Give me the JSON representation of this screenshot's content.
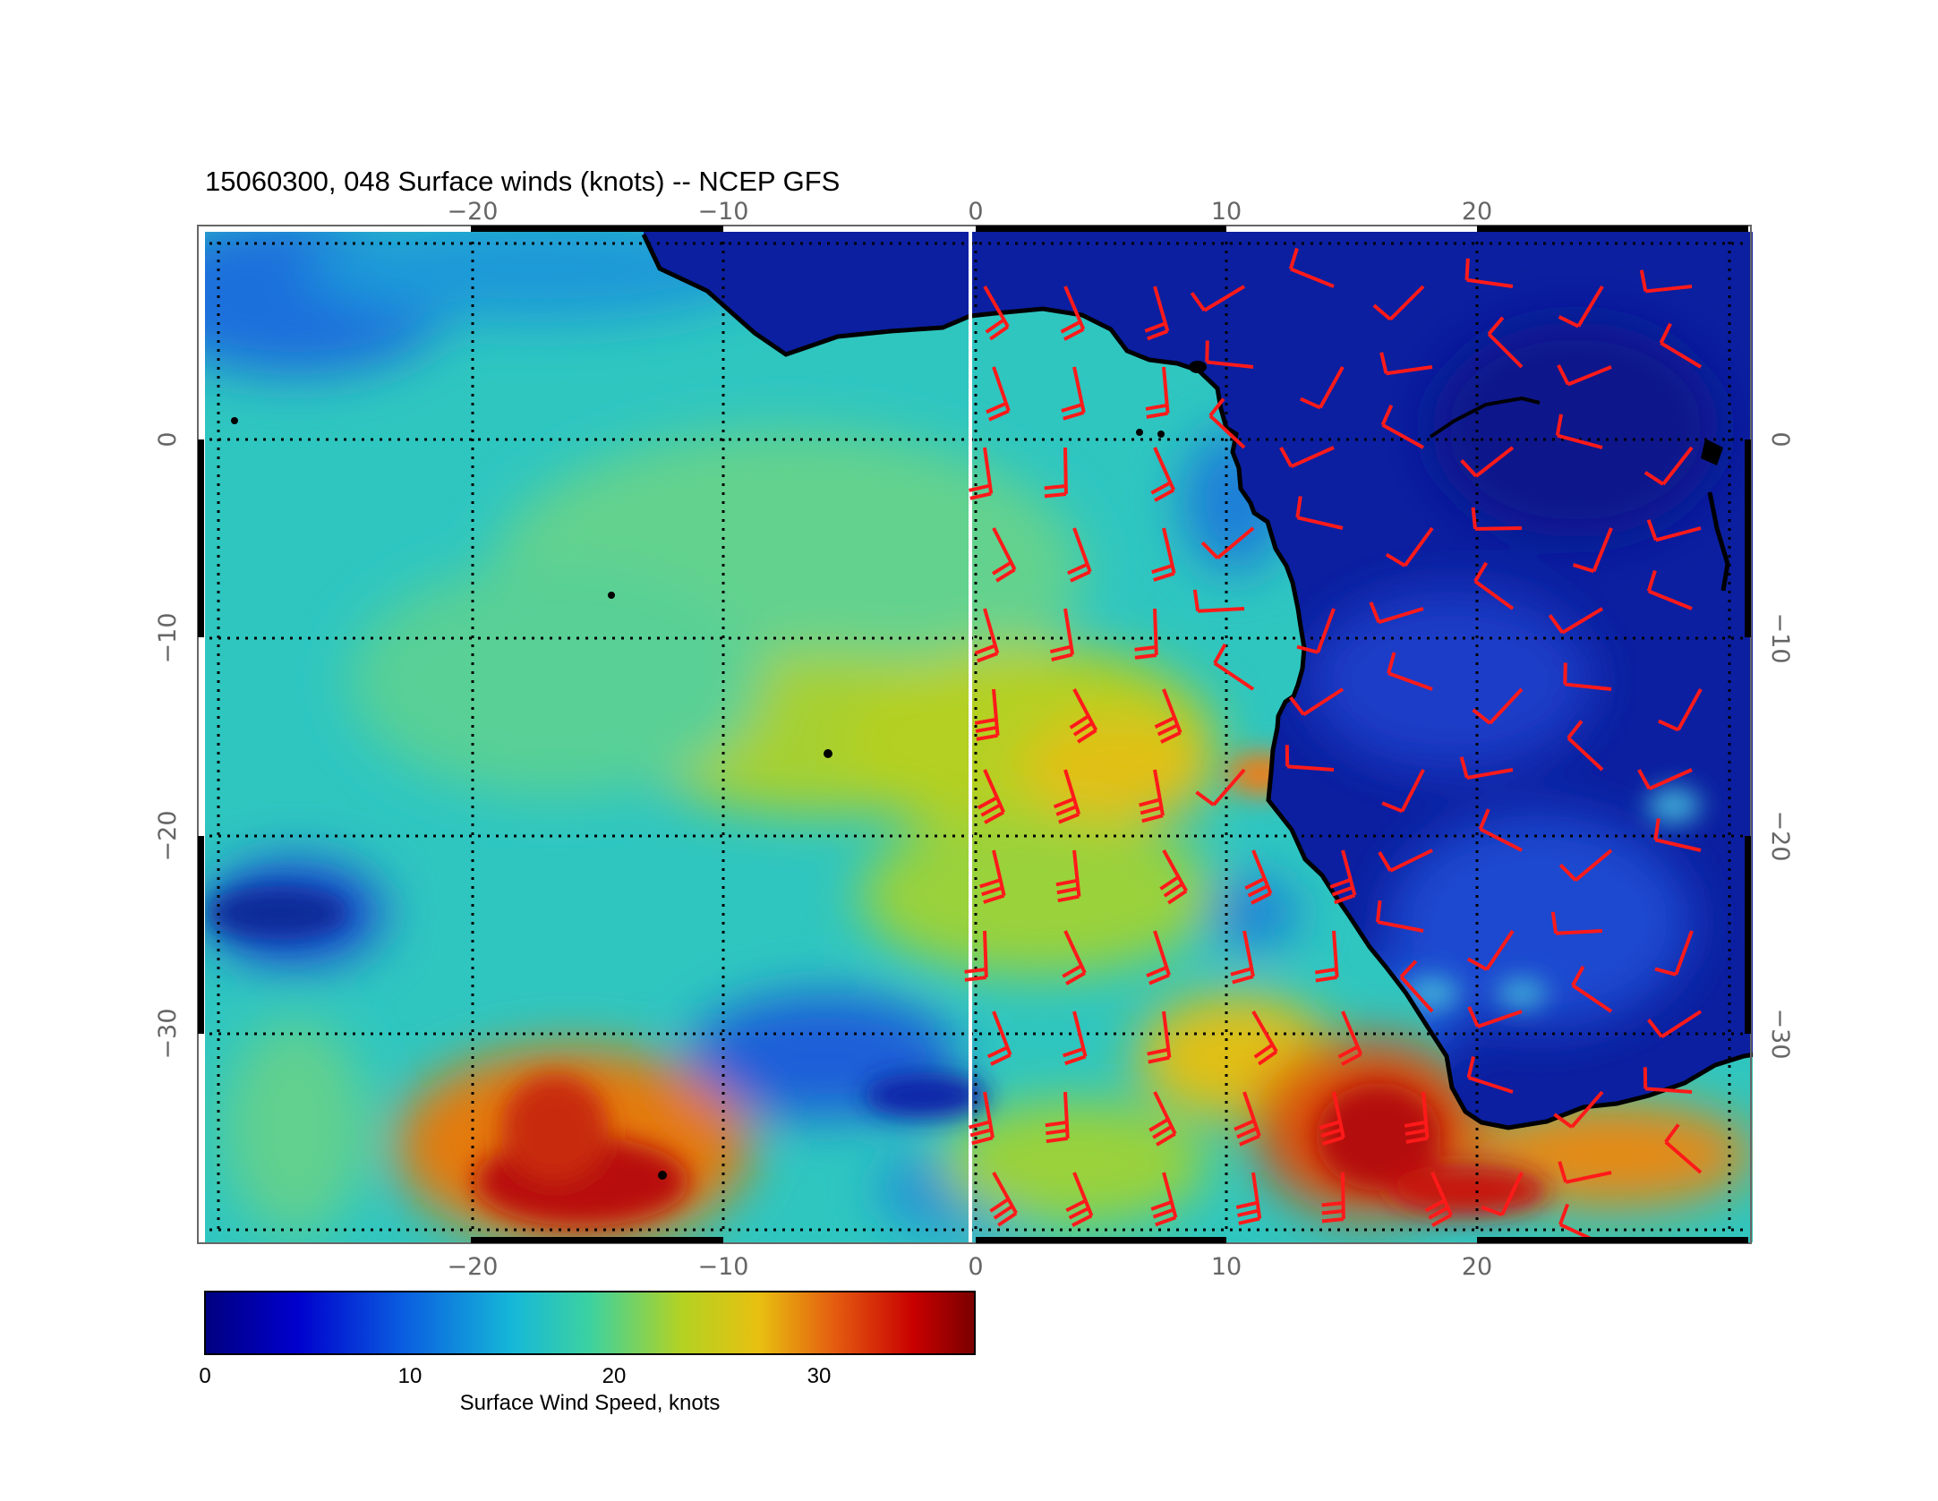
{
  "title": "15060300, 048 Surface winds (knots) -- NCEP GFS",
  "map": {
    "lon_range": [
      -30,
      30
    ],
    "lat_range": [
      -40,
      10
    ],
    "lon_ticks": [
      -20,
      -10,
      0,
      10,
      20
    ],
    "lat_ticks": [
      0,
      -10,
      -20,
      -30
    ],
    "lon_tick_labels": [
      "−20",
      "−10",
      "0",
      "10",
      "20"
    ],
    "lat_tick_labels": [
      "0",
      "−10",
      "−20",
      "−30"
    ],
    "grid": "dotted",
    "coastline": "Africa",
    "data_boundary_longitude": 0,
    "wind_barbs_region": "east of 0° longitude",
    "barb_color": "#ff1a1a"
  },
  "colorbar": {
    "label": "Surface Wind Speed, knots",
    "range": [
      0,
      38
    ],
    "ticks": [
      0,
      10,
      20,
      30
    ],
    "tick_labels": [
      "0",
      "10",
      "20",
      "30"
    ],
    "colormap": [
      "#000080",
      "#0000cd",
      "#0a5fe0",
      "#16b8d8",
      "#3cd2a0",
      "#b4d222",
      "#e8c010",
      "#e45a10",
      "#c80000",
      "#7a0000"
    ]
  }
}
